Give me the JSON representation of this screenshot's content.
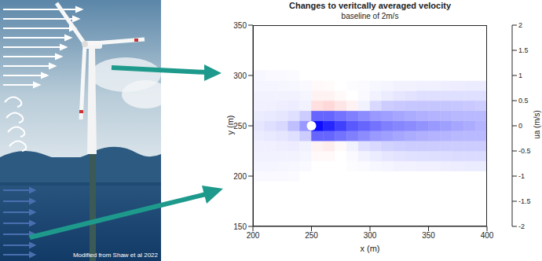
{
  "chart_data": {
    "type": "heatmap",
    "title": "Changes to veritcally averaged velocity",
    "subtitle": "baseline of 2m/s",
    "x_label": "x (m)",
    "y_label": "y (m)",
    "xlim": [
      200,
      400
    ],
    "xticks": [
      200,
      250,
      300,
      350,
      400
    ],
    "ylim": [
      150,
      350
    ],
    "yticks": [
      150,
      200,
      250,
      300,
      350
    ],
    "heatmap": {
      "x_edges": [
        200,
        210,
        220,
        230,
        240,
        250,
        260,
        270,
        280,
        290,
        300,
        310,
        320,
        330,
        340,
        350,
        360,
        370,
        380,
        390,
        400
      ],
      "y_edges": [
        195,
        205,
        215,
        225,
        235,
        245,
        255,
        265,
        275,
        285,
        295,
        305
      ],
      "values": [
        [
          -0.05,
          -0.05,
          -0.05,
          -0.03,
          0,
          0,
          0,
          0,
          0,
          0,
          0,
          0,
          0,
          0,
          0,
          0,
          0,
          0,
          0,
          0
        ],
        [
          -0.08,
          -0.08,
          -0.07,
          -0.06,
          -0.05,
          0,
          0,
          0,
          -0.02,
          -0.04,
          -0.06,
          -0.08,
          -0.1,
          -0.1,
          -0.12,
          -0.12,
          -0.13,
          -0.14,
          -0.15,
          -0.15
        ],
        [
          -0.1,
          -0.1,
          -0.1,
          -0.1,
          -0.08,
          0.05,
          0.05,
          0,
          -0.05,
          -0.1,
          -0.15,
          -0.2,
          -0.22,
          -0.24,
          -0.25,
          -0.26,
          -0.27,
          -0.28,
          -0.28,
          -0.28
        ],
        [
          -0.12,
          -0.12,
          -0.13,
          -0.14,
          -0.1,
          0.1,
          0.15,
          0.05,
          -0.1,
          -0.25,
          -0.3,
          -0.35,
          -0.38,
          -0.4,
          -0.4,
          -0.4,
          -0.4,
          -0.4,
          -0.4,
          -0.4
        ],
        [
          -0.15,
          -0.17,
          -0.2,
          -0.25,
          -0.4,
          -1.2,
          -1.2,
          -1.1,
          -1.0,
          -0.9,
          -0.8,
          -0.75,
          -0.7,
          -0.65,
          -0.62,
          -0.6,
          -0.58,
          -0.56,
          -0.55,
          -0.55
        ],
        [
          -0.2,
          -0.25,
          -0.3,
          -0.5,
          -0.8,
          -1.9,
          -1.7,
          -1.5,
          -1.3,
          -1.2,
          -1.1,
          -1.0,
          -0.95,
          -0.9,
          -0.85,
          -0.8,
          -0.75,
          -0.7,
          -0.65,
          -0.6
        ],
        [
          -0.15,
          -0.17,
          -0.2,
          -0.25,
          -0.4,
          -1.2,
          -1.2,
          -1.1,
          -1.0,
          -0.9,
          -0.8,
          -0.75,
          -0.7,
          -0.65,
          -0.62,
          -0.6,
          -0.58,
          -0.56,
          -0.55,
          -0.55
        ],
        [
          -0.12,
          -0.12,
          -0.13,
          -0.14,
          -0.1,
          0.25,
          0.3,
          0.2,
          0.1,
          -0.1,
          -0.3,
          -0.4,
          -0.42,
          -0.44,
          -0.45,
          -0.45,
          -0.45,
          -0.44,
          -0.42,
          -0.4
        ],
        [
          -0.1,
          -0.1,
          -0.1,
          -0.1,
          -0.08,
          0.1,
          0.1,
          0.05,
          0,
          -0.05,
          -0.1,
          -0.15,
          -0.2,
          -0.22,
          -0.25,
          -0.25,
          -0.25,
          -0.25,
          -0.25,
          -0.25
        ],
        [
          -0.08,
          -0.08,
          -0.07,
          -0.06,
          -0.05,
          0.05,
          0.03,
          0,
          -0.02,
          -0.04,
          -0.06,
          -0.08,
          -0.1,
          -0.1,
          -0.12,
          -0.12,
          -0.13,
          -0.14,
          -0.15,
          -0.15
        ],
        [
          -0.06,
          -0.05,
          -0.05,
          -0.03,
          0,
          0,
          0,
          0,
          0,
          0,
          0,
          0,
          0,
          0,
          0,
          0,
          0,
          0,
          0,
          0
        ]
      ]
    },
    "monopile": {
      "x": 250,
      "y": 250
    },
    "colorbar": {
      "label": "ua (m/s)",
      "range": [
        -2,
        2
      ],
      "ticks": [
        -2,
        -1.5,
        -1,
        -0.5,
        0,
        0.5,
        1,
        1.5,
        2
      ]
    }
  },
  "illustration": {
    "credit": "Modified from Shaw et al 2022"
  }
}
